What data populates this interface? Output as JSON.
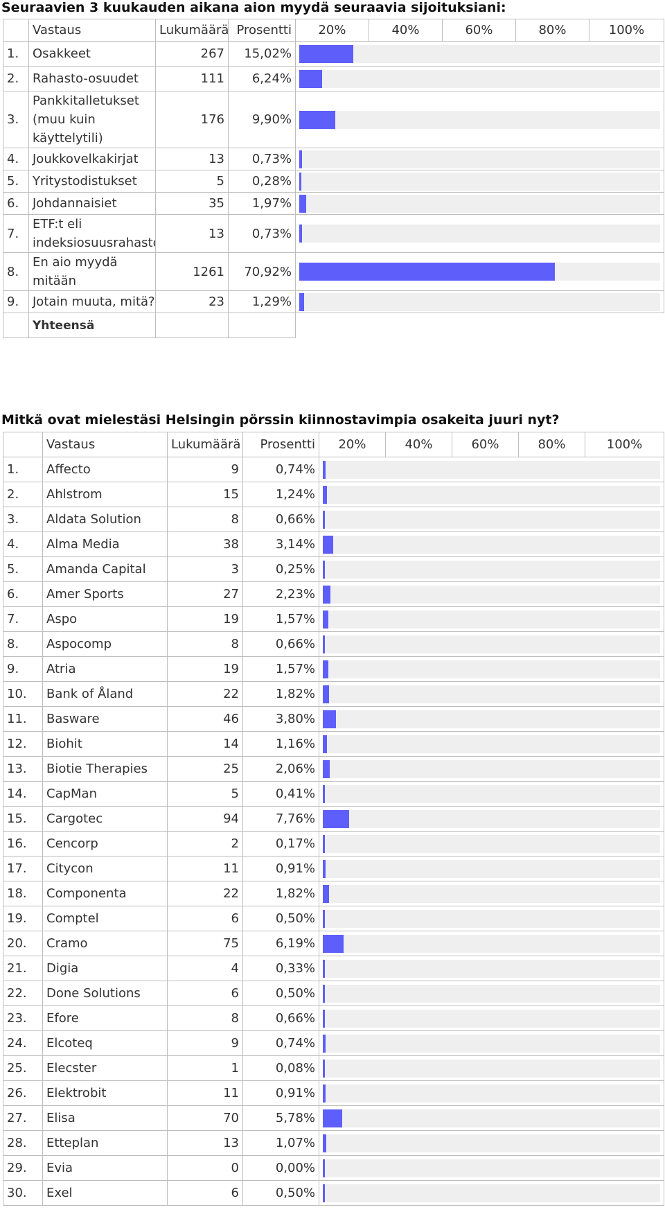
{
  "q1": {
    "title": "Seuraavien 3 kuukauden aikana aion myydä seuraavia sijoituksiani:",
    "header": {
      "answer": "Vastaus",
      "count": "Lukumäärä",
      "percent": "Prosentti",
      "scale": [
        "20%",
        "40%",
        "60%",
        "80%",
        "100%"
      ]
    },
    "rows": [
      {
        "num": "1.",
        "label": "Osakkeet",
        "count": "267",
        "percent": "15,02%",
        "value": 15.02
      },
      {
        "num": "2.",
        "label": "Rahasto-osuudet",
        "count": "111",
        "percent": "6,24%",
        "value": 6.24
      },
      {
        "num": "3.",
        "label": "Pankkitalletukset (muu kuin käyttelytili)",
        "count": "176",
        "percent": "9,90%",
        "value": 9.9
      },
      {
        "num": "4.",
        "label": "Joukkovelkakirjat",
        "count": "13",
        "percent": "0,73%",
        "value": 0.73
      },
      {
        "num": "5.",
        "label": "Yritystodistukset",
        "count": "5",
        "percent": "0,28%",
        "value": 0.28
      },
      {
        "num": "6.",
        "label": "Johdannaisiet",
        "count": "35",
        "percent": "1,97%",
        "value": 1.97
      },
      {
        "num": "7.",
        "label": "ETF:t eli indeksiosuusrahastot",
        "count": "13",
        "percent": "0,73%",
        "value": 0.73
      },
      {
        "num": "8.",
        "label": "En aio myydä mitään",
        "count": "1261",
        "percent": "70,92%",
        "value": 70.92
      },
      {
        "num": "9.",
        "label": "Jotain muuta, mitä?",
        "count": "23",
        "percent": "1,29%",
        "value": 1.29
      }
    ],
    "total_label": "Yhteensä"
  },
  "q2": {
    "title": "Mitkä ovat mielestäsi Helsingin pörssin kiinnostavimpia osakeita juuri nyt?",
    "header": {
      "answer": "Vastaus",
      "count": "Lukumäärä",
      "percent": "Prosentti",
      "scale": [
        "20%",
        "40%",
        "60%",
        "80%",
        "100%"
      ]
    },
    "rows": [
      {
        "num": "1.",
        "label": "Affecto",
        "count": "9",
        "percent": "0,74%",
        "value": 0.74
      },
      {
        "num": "2.",
        "label": "Ahlstrom",
        "count": "15",
        "percent": "1,24%",
        "value": 1.24
      },
      {
        "num": "3.",
        "label": "Aldata Solution",
        "count": "8",
        "percent": "0,66%",
        "value": 0.66
      },
      {
        "num": "4.",
        "label": "Alma Media",
        "count": "38",
        "percent": "3,14%",
        "value": 3.14
      },
      {
        "num": "5.",
        "label": "Amanda Capital",
        "count": "3",
        "percent": "0,25%",
        "value": 0.25
      },
      {
        "num": "6.",
        "label": "Amer Sports",
        "count": "27",
        "percent": "2,23%",
        "value": 2.23
      },
      {
        "num": "7.",
        "label": "Aspo",
        "count": "19",
        "percent": "1,57%",
        "value": 1.57
      },
      {
        "num": "8.",
        "label": "Aspocomp",
        "count": "8",
        "percent": "0,66%",
        "value": 0.66
      },
      {
        "num": "9.",
        "label": "Atria",
        "count": "19",
        "percent": "1,57%",
        "value": 1.57
      },
      {
        "num": "10.",
        "label": "Bank of Åland",
        "count": "22",
        "percent": "1,82%",
        "value": 1.82
      },
      {
        "num": "11.",
        "label": "Basware",
        "count": "46",
        "percent": "3,80%",
        "value": 3.8
      },
      {
        "num": "12.",
        "label": "Biohit",
        "count": "14",
        "percent": "1,16%",
        "value": 1.16
      },
      {
        "num": "13.",
        "label": "Biotie Therapies",
        "count": "25",
        "percent": "2,06%",
        "value": 2.06
      },
      {
        "num": "14.",
        "label": "CapMan",
        "count": "5",
        "percent": "0,41%",
        "value": 0.41
      },
      {
        "num": "15.",
        "label": "Cargotec",
        "count": "94",
        "percent": "7,76%",
        "value": 7.76
      },
      {
        "num": "16.",
        "label": "Cencorp",
        "count": "2",
        "percent": "0,17%",
        "value": 0.17
      },
      {
        "num": "17.",
        "label": "Citycon",
        "count": "11",
        "percent": "0,91%",
        "value": 0.91
      },
      {
        "num": "18.",
        "label": "Componenta",
        "count": "22",
        "percent": "1,82%",
        "value": 1.82
      },
      {
        "num": "19.",
        "label": "Comptel",
        "count": "6",
        "percent": "0,50%",
        "value": 0.5
      },
      {
        "num": "20.",
        "label": "Cramo",
        "count": "75",
        "percent": "6,19%",
        "value": 6.19
      },
      {
        "num": "21.",
        "label": "Digia",
        "count": "4",
        "percent": "0,33%",
        "value": 0.33
      },
      {
        "num": "22.",
        "label": "Done Solutions",
        "count": "6",
        "percent": "0,50%",
        "value": 0.5
      },
      {
        "num": "23.",
        "label": "Efore",
        "count": "8",
        "percent": "0,66%",
        "value": 0.66
      },
      {
        "num": "24.",
        "label": "Elcoteq",
        "count": "9",
        "percent": "0,74%",
        "value": 0.74
      },
      {
        "num": "25.",
        "label": "Elecster",
        "count": "1",
        "percent": "0,08%",
        "value": 0.08
      },
      {
        "num": "26.",
        "label": "Elektrobit",
        "count": "11",
        "percent": "0,91%",
        "value": 0.91
      },
      {
        "num": "27.",
        "label": "Elisa",
        "count": "70",
        "percent": "5,78%",
        "value": 5.78
      },
      {
        "num": "28.",
        "label": "Etteplan",
        "count": "13",
        "percent": "1,07%",
        "value": 1.07
      },
      {
        "num": "29.",
        "label": "Evia",
        "count": "0",
        "percent": "0,00%",
        "value": 0.0
      },
      {
        "num": "30.",
        "label": "Exel",
        "count": "6",
        "percent": "0,50%",
        "value": 0.5
      }
    ]
  },
  "colors": {
    "bar_fill": "#5e5efa",
    "bar_track": "#efefef",
    "border": "#bdbdbd"
  }
}
